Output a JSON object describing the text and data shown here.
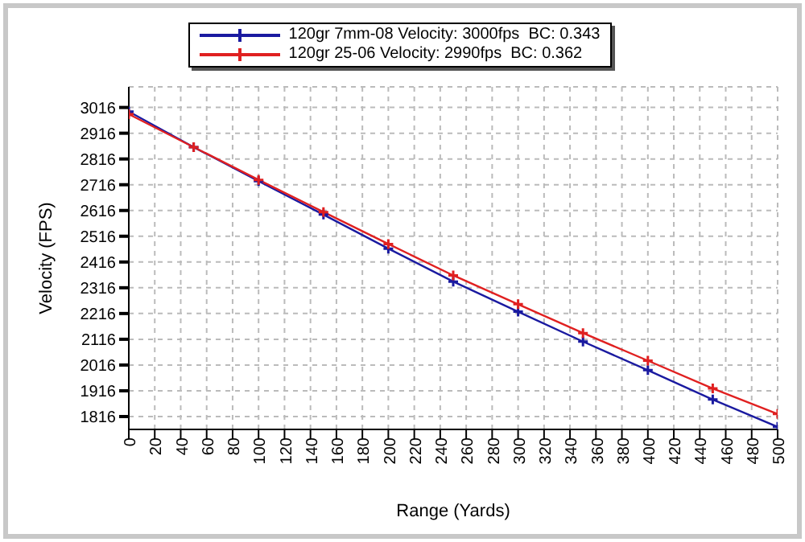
{
  "chart_data": {
    "type": "line",
    "xlabel": "Range (Yards)",
    "ylabel": "Velocity (FPS)",
    "x": [
      0,
      50,
      100,
      150,
      200,
      250,
      300,
      350,
      400,
      450,
      500
    ],
    "series": [
      {
        "name": "120gr 7mm-08 Velocity: 3000fps  BC: 0.343",
        "color": "#1a1aa0",
        "values": [
          3000,
          2862,
          2730,
          2600,
          2468,
          2340,
          2223,
          2107,
          1996,
          1882,
          1776
        ]
      },
      {
        "name": "120gr 25-06 Velocity: 2990fps  BC: 0.362",
        "color": "#e02020",
        "values": [
          2990,
          2862,
          2735,
          2610,
          2486,
          2364,
          2252,
          2140,
          2033,
          1925,
          1826
        ]
      }
    ],
    "xlim": [
      0,
      500
    ],
    "xticks": [
      0,
      20,
      40,
      60,
      80,
      100,
      120,
      140,
      160,
      180,
      200,
      220,
      240,
      260,
      280,
      300,
      320,
      340,
      360,
      380,
      400,
      420,
      440,
      460,
      480,
      500
    ],
    "ylim": [
      1766,
      3096
    ],
    "yticks": [
      1816,
      1916,
      2016,
      2116,
      2216,
      2316,
      2416,
      2516,
      2616,
      2716,
      2816,
      2916,
      3016
    ],
    "grid": true,
    "legend": "top",
    "marker": "cross",
    "line_style": "solid"
  }
}
